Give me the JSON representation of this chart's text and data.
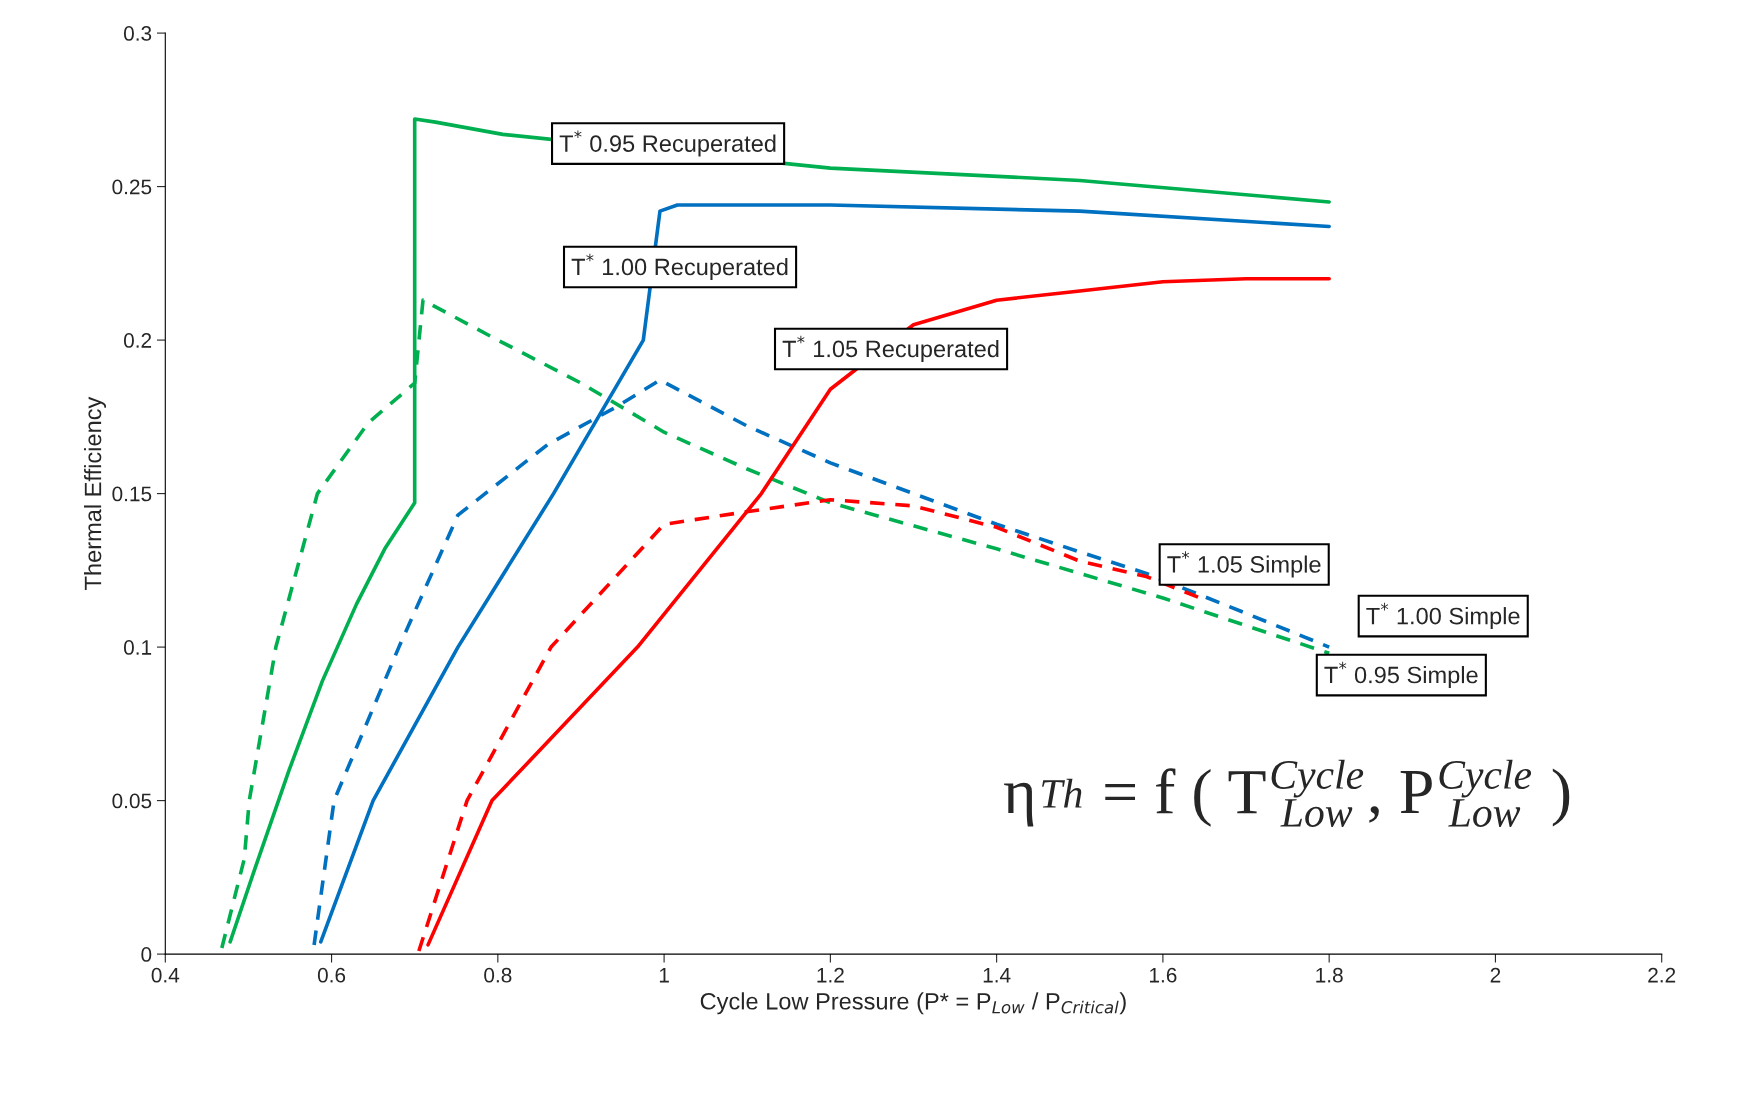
{
  "chart_data": {
    "type": "line",
    "xlabel": "Cycle Low Pressure (P* = P$_{Low}$ / P$_{Critical}$)",
    "ylabel": "Thermal Efficiency",
    "xlim": [
      0.4,
      2.2
    ],
    "xticks": [
      0.4,
      0.6,
      0.8,
      1,
      1.2,
      1.4,
      1.6,
      1.8,
      2,
      2.2
    ],
    "ylim": [
      0,
      0.3
    ],
    "yticks": [
      0,
      0.05,
      0.1,
      0.15,
      0.2,
      0.25,
      0.3
    ],
    "grid": false,
    "legend": false,
    "series": [
      {
        "name": "T$^{*}$ 0.95 Recuperated",
        "color": "#00b050",
        "line_style": "solid",
        "x": [
          0.478,
          0.508,
          0.549,
          0.589,
          0.63,
          0.664,
          0.7,
          0.7,
          0.725,
          0.806,
          1.2,
          1.5,
          1.8
        ],
        "values": [
          0.004,
          0.028,
          0.06,
          0.089,
          0.114,
          0.132,
          0.147,
          0.272,
          0.271,
          0.267,
          0.256,
          0.252,
          0.245
        ]
      },
      {
        "name": "T$^{*}$ 0.95 Simple",
        "color": "#00b050",
        "line_style": "dashed",
        "x": [
          0.468,
          0.495,
          0.501,
          0.533,
          0.583,
          0.644,
          0.7,
          0.71,
          0.8,
          0.9,
          1.0,
          1.1,
          1.2,
          1.4,
          1.6,
          1.7,
          1.8
        ],
        "values": [
          0.002,
          0.031,
          0.05,
          0.1,
          0.15,
          0.173,
          0.186,
          0.213,
          0.2,
          0.186,
          0.17,
          0.158,
          0.147,
          0.132,
          0.116,
          0.107,
          0.098
        ]
      },
      {
        "name": "T$^{*}$ 1.00 Recuperated",
        "color": "#0070c0",
        "line_style": "solid",
        "x": [
          0.587,
          0.65,
          0.752,
          0.867,
          0.975,
          0.995,
          1.016,
          1.2,
          1.5,
          1.8
        ],
        "values": [
          0.004,
          0.05,
          0.1,
          0.15,
          0.2,
          0.242,
          0.244,
          0.244,
          0.242,
          0.237
        ]
      },
      {
        "name": "T$^{*}$ 1.00 Simple",
        "color": "#0070c0",
        "line_style": "dashed",
        "x": [
          0.579,
          0.603,
          0.681,
          0.752,
          0.86,
          0.941,
          0.995,
          1.1,
          1.2,
          1.3,
          1.4,
          1.5,
          1.58,
          1.7,
          1.8
        ],
        "values": [
          0.003,
          0.05,
          0.1,
          0.143,
          0.166,
          0.178,
          0.187,
          0.172,
          0.16,
          0.15,
          0.14,
          0.131,
          0.124,
          0.111,
          0.1
        ]
      },
      {
        "name": "T$^{*}$ 1.05 Recuperated",
        "color": "#ff0000",
        "line_style": "solid",
        "x": [
          0.716,
          0.793,
          0.968,
          1.117,
          1.2,
          1.3,
          1.4,
          1.5,
          1.6,
          1.7,
          1.8
        ],
        "values": [
          0.003,
          0.05,
          0.1,
          0.15,
          0.184,
          0.205,
          0.213,
          0.216,
          0.219,
          0.22,
          0.22
        ]
      },
      {
        "name": "T$^{*}$ 1.05 Simple",
        "color": "#ff0000",
        "line_style": "dashed",
        "x": [
          0.705,
          0.763,
          0.864,
          1.0,
          1.097,
          1.2,
          1.3,
          1.4,
          1.5,
          1.58,
          1.645
        ],
        "values": [
          0.001,
          0.05,
          0.1,
          0.14,
          0.144,
          0.148,
          0.146,
          0.139,
          0.128,
          0.123,
          0.116
        ]
      }
    ],
    "annotations": [
      "η$_{Th}$ = f ( T$_{Cycle Low}$, P$_{Cycle Low}$ )"
    ]
  }
}
